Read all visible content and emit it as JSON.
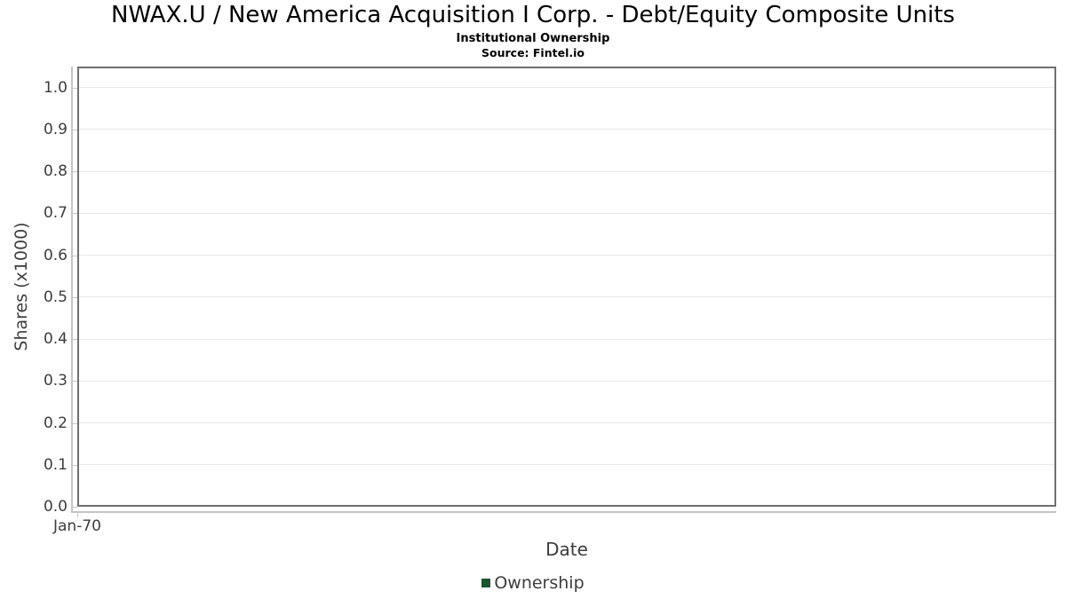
{
  "page": {
    "background": "#ffffff"
  },
  "chart_data": {
    "type": "line",
    "title": "NWAX.U / New America Acquisition I Corp. - Debt/Equity Composite Units",
    "subtitle": "Institutional Ownership",
    "source": "Source: Fintel.io",
    "xlabel": "Date",
    "ylabel": "Shares (x1000)",
    "x_tick_labels": [
      "Jan-70"
    ],
    "y_tick_labels": [
      "0.0",
      "0.1",
      "0.2",
      "0.3",
      "0.4",
      "0.5",
      "0.6",
      "0.7",
      "0.8",
      "0.9",
      "1.0"
    ],
    "ylim": [
      0,
      1.05
    ],
    "grid": true,
    "legend_position": "bottom",
    "series": [
      {
        "name": "Ownership",
        "color": "#1c5430",
        "x": [],
        "values": []
      }
    ],
    "colors": {
      "title": "#000000",
      "tick_label": "#3d3d3d",
      "axis_title": "#3d3d3d",
      "grid_line": "#e8e8e8",
      "axis_line": "#c4c4c4",
      "plot_border": "#6f6f6f",
      "legend_marker": "#1c5430",
      "legend_text": "#3d3d3d"
    }
  }
}
